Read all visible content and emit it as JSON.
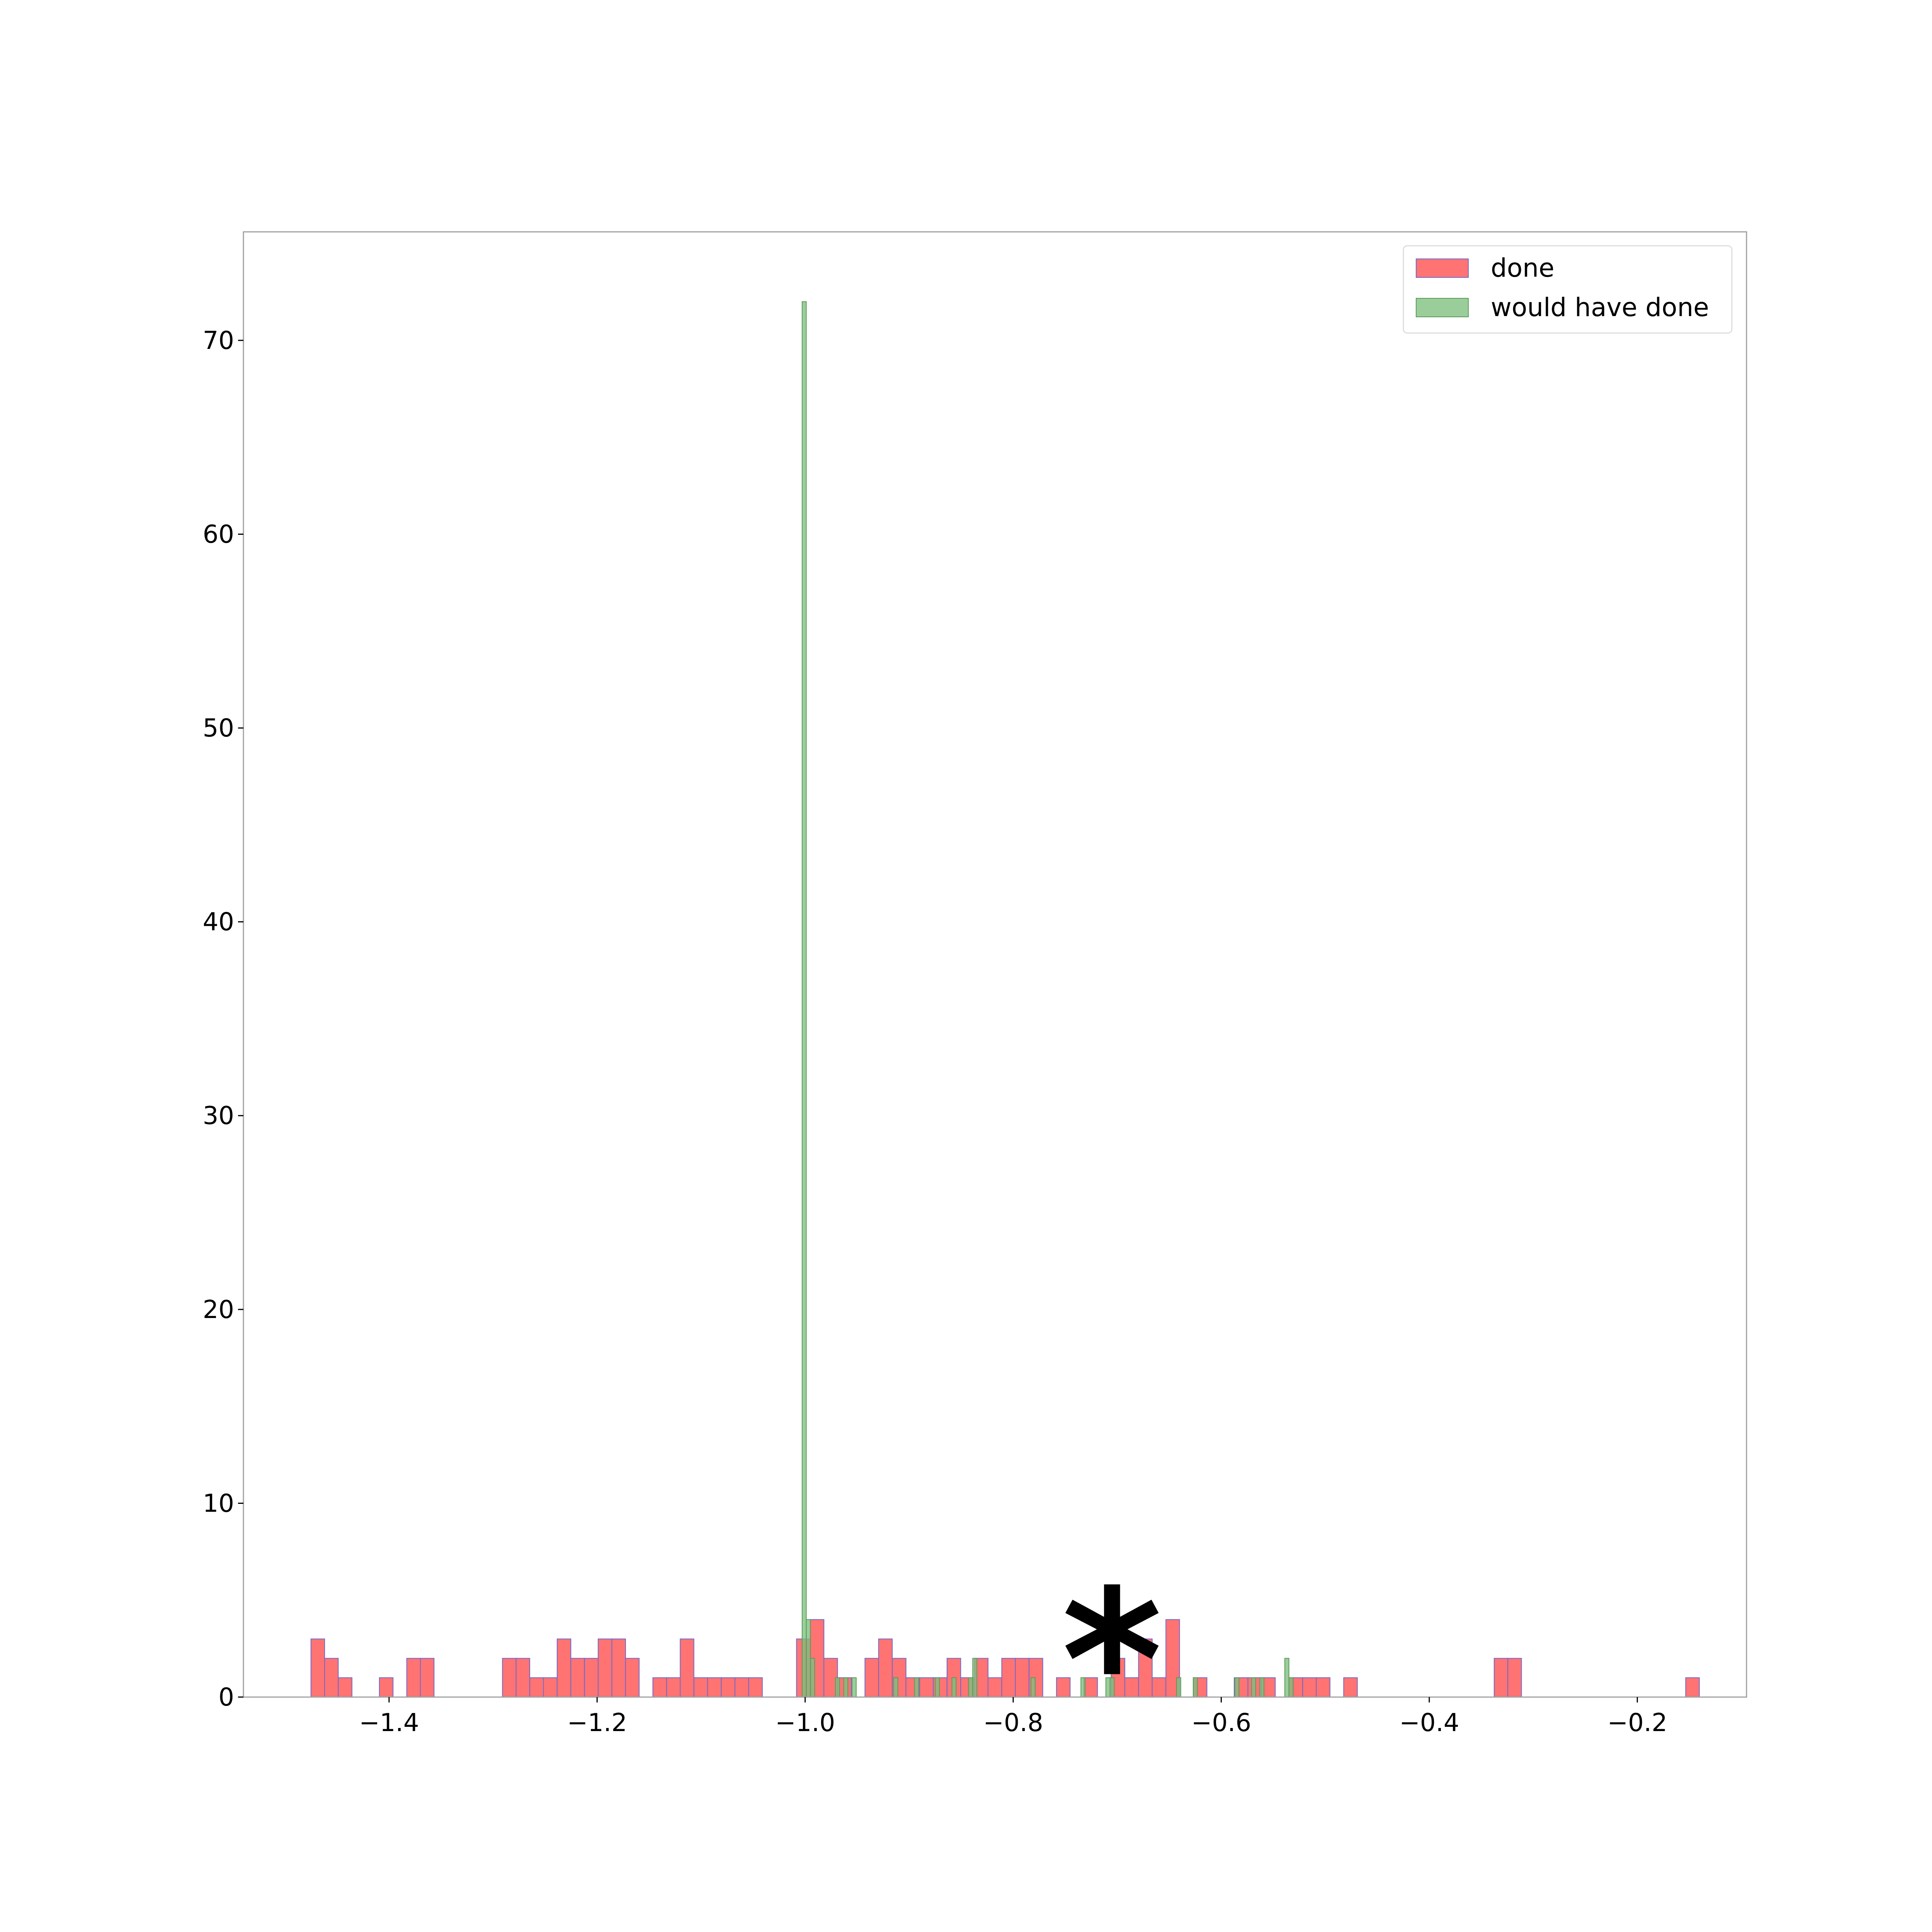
{
  "chart_data": {
    "type": "bar",
    "title": "",
    "xlabel": "",
    "ylabel": "",
    "xlim": [
      -1.54,
      -0.095
    ],
    "ylim": [
      0,
      75.6
    ],
    "x_ticks": [
      -1.4,
      -1.2,
      -1.0,
      -0.8,
      -0.6,
      -0.4,
      -0.2
    ],
    "x_tick_labels": [
      "−1.4",
      "−1.2",
      "−1.0",
      "−0.8",
      "−0.6",
      "−0.4",
      "−0.2"
    ],
    "y_ticks": [
      0,
      10,
      20,
      30,
      40,
      50,
      60,
      70
    ],
    "y_tick_labels": [
      "0",
      "10",
      "20",
      "30",
      "40",
      "50",
      "60",
      "70"
    ],
    "grid": false,
    "legend_position": "top-right",
    "annotation": {
      "text": "*",
      "x": -0.705,
      "y": 3.2
    },
    "series": [
      {
        "name": "done",
        "color": "#ff6b6b",
        "edge_color": "#6a6acd",
        "bin_width": 0.01315,
        "bins": [
          {
            "x0": -1.4751,
            "count": 3
          },
          {
            "x0": -1.462,
            "count": 2
          },
          {
            "x0": -1.4488,
            "count": 1
          },
          {
            "x0": -1.4093,
            "count": 1
          },
          {
            "x0": -1.383,
            "count": 2
          },
          {
            "x0": -1.3699,
            "count": 2
          },
          {
            "x0": -1.291,
            "count": 2
          },
          {
            "x0": -1.2779,
            "count": 2
          },
          {
            "x0": -1.2647,
            "count": 1
          },
          {
            "x0": -1.2516,
            "count": 1
          },
          {
            "x0": -1.2384,
            "count": 3
          },
          {
            "x0": -1.2253,
            "count": 2
          },
          {
            "x0": -1.2121,
            "count": 2
          },
          {
            "x0": -1.199,
            "count": 3
          },
          {
            "x0": -1.1858,
            "count": 3
          },
          {
            "x0": -1.1727,
            "count": 2
          },
          {
            "x0": -1.1464,
            "count": 1
          },
          {
            "x0": -1.1332,
            "count": 1
          },
          {
            "x0": -1.1201,
            "count": 3
          },
          {
            "x0": -1.1069,
            "count": 1
          },
          {
            "x0": -1.0938,
            "count": 1
          },
          {
            "x0": -1.0806,
            "count": 1
          },
          {
            "x0": -1.0675,
            "count": 1
          },
          {
            "x0": -1.0543,
            "count": 1
          },
          {
            "x0": -1.0083,
            "count": 3
          },
          {
            "x0": -0.9951,
            "count": 4
          },
          {
            "x0": -0.982,
            "count": 2
          },
          {
            "x0": -0.9688,
            "count": 1
          },
          {
            "x0": -0.9425,
            "count": 2
          },
          {
            "x0": -0.9294,
            "count": 3
          },
          {
            "x0": -0.9162,
            "count": 2
          },
          {
            "x0": -0.9031,
            "count": 1
          },
          {
            "x0": -0.8899,
            "count": 1
          },
          {
            "x0": -0.8768,
            "count": 1
          },
          {
            "x0": -0.8636,
            "count": 2
          },
          {
            "x0": -0.8505,
            "count": 1
          },
          {
            "x0": -0.8373,
            "count": 2
          },
          {
            "x0": -0.8242,
            "count": 1
          },
          {
            "x0": -0.811,
            "count": 2
          },
          {
            "x0": -0.7979,
            "count": 2
          },
          {
            "x0": -0.7847,
            "count": 2
          },
          {
            "x0": -0.7584,
            "count": 1
          },
          {
            "x0": -0.7321,
            "count": 1
          },
          {
            "x0": -0.7058,
            "count": 2
          },
          {
            "x0": -0.6927,
            "count": 1
          },
          {
            "x0": -0.6795,
            "count": 3
          },
          {
            "x0": -0.6664,
            "count": 1
          },
          {
            "x0": -0.6532,
            "count": 4
          },
          {
            "x0": -0.6269,
            "count": 1
          },
          {
            "x0": -0.5875,
            "count": 1
          },
          {
            "x0": -0.5743,
            "count": 1
          },
          {
            "x0": -0.5612,
            "count": 1
          },
          {
            "x0": -0.5349,
            "count": 1
          },
          {
            "x0": -0.5217,
            "count": 1
          },
          {
            "x0": -0.5086,
            "count": 1
          },
          {
            "x0": -0.4823,
            "count": 1
          },
          {
            "x0": -0.3376,
            "count": 2
          },
          {
            "x0": -0.3245,
            "count": 2
          },
          {
            "x0": -0.1535,
            "count": 1
          }
        ]
      },
      {
        "name": "would have done",
        "color": "#7fbf7f",
        "edge_color": "#5a9a5a",
        "bin_width": 0.004,
        "bins": [
          {
            "x0": -1.0029,
            "count": 72
          },
          {
            "x0": -0.9989,
            "count": 4
          },
          {
            "x0": -0.9949,
            "count": 2
          },
          {
            "x0": -0.9709,
            "count": 1
          },
          {
            "x0": -0.9629,
            "count": 1
          },
          {
            "x0": -0.9549,
            "count": 1
          },
          {
            "x0": -0.9149,
            "count": 1
          },
          {
            "x0": -0.8949,
            "count": 1
          },
          {
            "x0": -0.8749,
            "count": 1
          },
          {
            "x0": -0.8589,
            "count": 1
          },
          {
            "x0": -0.8429,
            "count": 1
          },
          {
            "x0": -0.8389,
            "count": 2
          },
          {
            "x0": -0.7829,
            "count": 1
          },
          {
            "x0": -0.7349,
            "count": 1
          },
          {
            "x0": -0.7109,
            "count": 1
          },
          {
            "x0": -0.7069,
            "count": 1
          },
          {
            "x0": -0.6429,
            "count": 1
          },
          {
            "x0": -0.6269,
            "count": 1
          },
          {
            "x0": -0.5869,
            "count": 1
          },
          {
            "x0": -0.5709,
            "count": 1
          },
          {
            "x0": -0.5629,
            "count": 1
          },
          {
            "x0": -0.5389,
            "count": 2
          },
          {
            "x0": -0.5349,
            "count": 1
          }
        ]
      }
    ]
  }
}
